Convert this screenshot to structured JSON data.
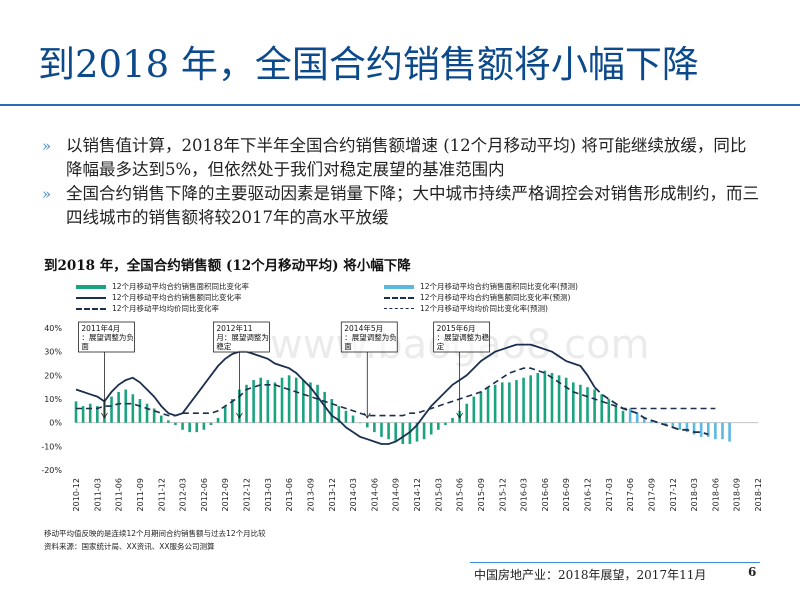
{
  "page": {
    "title": "到2018 年，全国合约销售额将小幅下降",
    "bullets": [
      "以销售值计算，2018年下半年全国合约销售额增速 (12个月移动平均) 将可能继续放缓，同比降幅最多达到5%，但依然处于我们对稳定展望的基准范围内",
      "全国合约销售下降的主要驱动因素是销量下降；大中城市持续严格调控会对销售形成制约，而三四线城市的销售额将较2017年的高水平放缓"
    ],
    "bullet_marker": "»",
    "notes": [
      "移动平均值反映的是连续12个月期间合约销售额与过去12个月比较",
      "资料来源：国家统计局、XX资讯、XX服务公司测算"
    ],
    "footer": "中国房地产业：2018年展望，2017年11月",
    "page_number": "6",
    "watermark": "www.baogao8.com"
  },
  "colors": {
    "title": "#0d4a8c",
    "bar_actual": "#1aa37f",
    "bar_forecast": "#5bb9e0",
    "line_dark": "#1b2f4e"
  },
  "chart_data": {
    "type": "bar+line",
    "title": "到2018 年，全国合约销售额 (12个月移动平均) 将小幅下降",
    "legend": [
      "12个月移动平均合约销售面积同比变化率",
      "12个月移动平均合约销售额同比变化率",
      "12个月移动平均均价同比变化率",
      "12个月移动平均合约销售面积同比变化率(预测)",
      "12个月移动平均合约销售额同比变化率(预测)",
      "12个月移动平均均价同比变化率(预测)"
    ],
    "ylim": [
      -20,
      40
    ],
    "yticks": [
      "40%",
      "30%",
      "20%",
      "10%",
      "0%",
      "-10%",
      "-20%"
    ],
    "ytick_values": [
      40,
      30,
      20,
      10,
      0,
      -10,
      -20
    ],
    "xticks": [
      "2010-12",
      "2011-03",
      "2011-06",
      "2011-09",
      "2011-12",
      "2012-03",
      "2012-06",
      "2012-09",
      "2012-12",
      "2013-03",
      "2013-06",
      "2013-09",
      "2013-12",
      "2014-03",
      "2014-06",
      "2014-09",
      "2014-12",
      "2015-03",
      "2015-06",
      "2015-09",
      "2015-12",
      "2016-03",
      "2016-06",
      "2016-09",
      "2016-12",
      "2017-03",
      "2017-06",
      "2017-09",
      "2017-12",
      "2018-03",
      "2018-06",
      "2018-09",
      "2018-12"
    ],
    "area_yoy_start": "2010-12",
    "area_yoy": [
      9,
      7,
      8,
      7,
      9,
      11,
      13,
      14,
      12,
      10,
      8,
      6,
      3,
      1,
      -1,
      -3,
      -4,
      -4,
      -3,
      -1,
      2,
      7,
      10,
      14,
      16,
      18,
      19,
      18,
      17,
      19,
      20,
      19,
      18,
      17,
      16,
      13,
      10,
      7,
      5,
      3,
      0,
      -2,
      -4,
      -6,
      -7,
      -8,
      -9,
      -9,
      -8,
      -7,
      -5,
      -3,
      -1,
      2,
      5,
      8,
      11,
      13,
      15,
      16,
      17,
      17,
      18,
      19,
      20,
      21,
      22,
      21,
      20,
      19,
      17,
      16,
      15,
      14,
      12,
      10,
      7,
      5
    ],
    "area_yoy_forecast": [
      6,
      4,
      2,
      1,
      0,
      -1,
      -2,
      -3,
      -4,
      -5,
      -6,
      -6,
      -7,
      -7,
      -8
    ],
    "sales_yoy_start": "2010-12",
    "sales_yoy": [
      14,
      13,
      12,
      11,
      9,
      13,
      16,
      18,
      19,
      17,
      14,
      11,
      7,
      4,
      3,
      4,
      8,
      12,
      16,
      20,
      24,
      27,
      29,
      30,
      30,
      29,
      28,
      27,
      25,
      24,
      23,
      21,
      18,
      15,
      11,
      7,
      3,
      1,
      -2,
      -4,
      -6,
      -7,
      -8,
      -9,
      -9,
      -8,
      -6,
      -4,
      -1,
      3,
      7,
      10,
      13,
      16,
      18,
      20,
      23,
      26,
      28,
      30,
      31,
      32,
      33,
      33,
      33,
      32,
      31,
      30,
      28,
      26,
      25,
      24,
      20,
      15
    ],
    "sales_yoy_forecast": [
      12,
      10,
      8,
      6,
      5,
      4,
      2,
      1,
      0,
      -1,
      -2,
      -3,
      -3,
      -4,
      -4,
      -5
    ],
    "price_yoy_start": "2010-12",
    "price_yoy": [
      6,
      6,
      6,
      6,
      7,
      7,
      8,
      8,
      8,
      7,
      6,
      5,
      4,
      3,
      3,
      4,
      4,
      4,
      4,
      4,
      5,
      7,
      9,
      11,
      14,
      15,
      16,
      16,
      16,
      15,
      14,
      13,
      12,
      11,
      10,
      9,
      8,
      7,
      6,
      5,
      4,
      3,
      3,
      3,
      3,
      3,
      3,
      4,
      4,
      5,
      6,
      7,
      8,
      9,
      10,
      11,
      12,
      13,
      15,
      17,
      19,
      21,
      22,
      23,
      23,
      22,
      21,
      19,
      17,
      15,
      13,
      12,
      11,
      10,
      9
    ],
    "price_yoy_forecast": [
      8,
      7,
      6,
      6,
      6,
      6,
      6,
      6,
      6,
      6,
      6,
      6,
      6,
      6,
      6,
      6
    ],
    "annotations": [
      {
        "label": "2011年4月：展望调整为负面",
        "date": "2011-04"
      },
      {
        "label": "2012年11月：展望调整为稳定",
        "date": "2012-11"
      },
      {
        "label": "2014年5月：展望调整为负面",
        "date": "2014-05"
      },
      {
        "label": "2015年6月：展望调整为稳定",
        "date": "2015-06"
      }
    ]
  }
}
